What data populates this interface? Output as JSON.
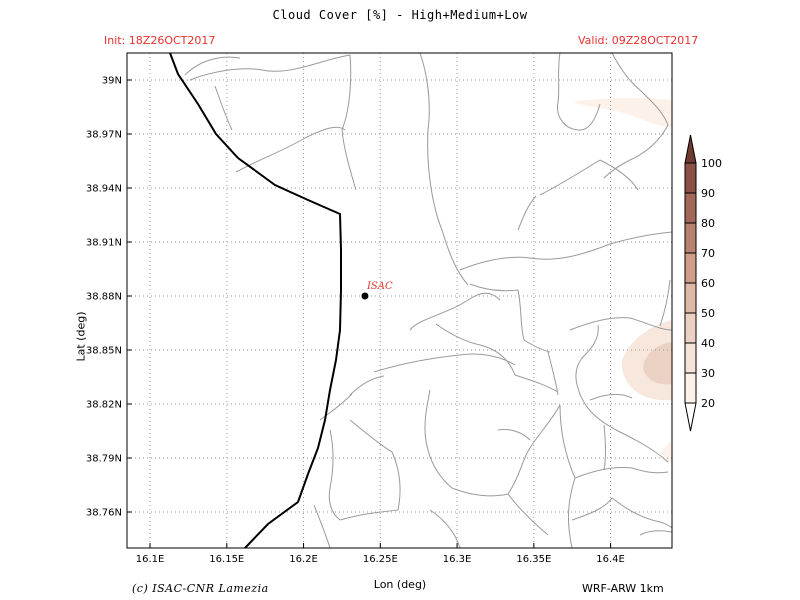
{
  "header": {
    "title": "Cloud Cover [%] - High+Medium+Low",
    "init": "Init: 18Z26OCT2017",
    "valid": "Valid: 09Z28OCT2017"
  },
  "map": {
    "lon_range": [
      16.085,
      16.44
    ],
    "lat_range": [
      38.74,
      39.015
    ],
    "lon_ticks": [
      16.1,
      16.15,
      16.2,
      16.25,
      16.3,
      16.35,
      16.4
    ],
    "lon_tick_labels": [
      "16.1E",
      "16.15E",
      "16.2E",
      "16.25E",
      "16.3E",
      "16.35E",
      "16.4E"
    ],
    "lat_ticks": [
      38.76,
      38.79,
      38.82,
      38.85,
      38.88,
      38.91,
      38.94,
      38.97,
      39.0
    ],
    "lat_tick_labels": [
      "38.76N",
      "38.79N",
      "38.82N",
      "38.85N",
      "38.88N",
      "38.91N",
      "38.94N",
      "38.97N",
      "39N"
    ],
    "grid": true,
    "station": {
      "name": "ISAC",
      "lon": 16.24,
      "lat": 38.88
    }
  },
  "axes": {
    "xlabel": "Lon (deg)",
    "ylabel": "Lat (deg)"
  },
  "colorbar": {
    "levels": [
      "20",
      "30",
      "40",
      "50",
      "60",
      "70",
      "80",
      "90",
      "100"
    ],
    "colors": [
      "#fcf2ea",
      "#f5e3d8",
      "#ecd1c2",
      "#deb9a6",
      "#cd9d88",
      "#b98270",
      "#a2685a",
      "#8b5146",
      "#6e3b33"
    ]
  },
  "footer": {
    "credit": "(c) ISAC-CNR Lamezia",
    "model": "WRF-ARW 1km"
  }
}
